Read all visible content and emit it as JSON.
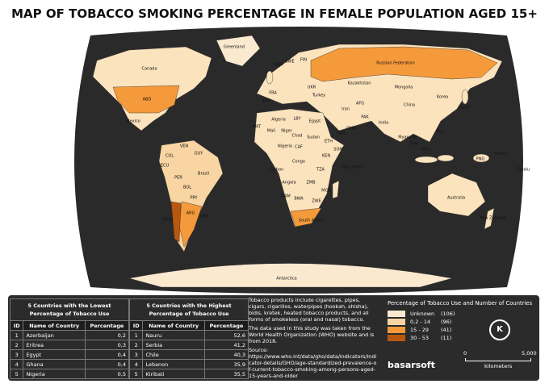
{
  "header": {
    "title": "MAP OF TOBACCO SMOKING PERCENTAGE IN FEMALE POPULATION AGED 15+"
  },
  "map": {
    "labels": [
      "Greenland",
      "Canada",
      "ABD",
      "Mexico",
      "COL",
      "VEN",
      "GUY",
      "ECU",
      "PER",
      "Brazil",
      "BOL",
      "PRY",
      "ARG",
      "Chile",
      "URY",
      "Russian Federation",
      "Kazakhstan",
      "Mongolia",
      "China",
      "India",
      "Iran",
      "AFG",
      "PAK",
      "Turkey",
      "FIN",
      "SWE",
      "NOR",
      "FRA",
      "ESP",
      "UKR",
      "Algeria",
      "LBY",
      "Egypt",
      "Sudan",
      "Chad",
      "Niger",
      "Mali",
      "MRT",
      "Nigeria",
      "CAF",
      "Gabon",
      "Congo",
      "Angola",
      "ZMB",
      "NAM",
      "BWA",
      "ZWE",
      "South Africa",
      "MOZ",
      "TZA",
      "KEN",
      "SOM",
      "ETH",
      "YEM",
      "OMN",
      "Seychelles",
      "Korea",
      "Japan",
      "Myanmar",
      "THA",
      "PHL",
      "MYS",
      "PNG",
      "Australia",
      "New Zealand",
      "Nauru",
      "Tuvalu",
      "Antarctica"
    ]
  },
  "lowest_table": {
    "title": "5 Countries with the Lowest Percentage of Tobacco Use",
    "columns": [
      "ID",
      "Name of Country",
      "Percentage"
    ],
    "rows": [
      [
        1,
        "Azerbaijan",
        "0,2"
      ],
      [
        2,
        "Eritrea",
        "0,3"
      ],
      [
        3,
        "Egypt",
        "0,4"
      ],
      [
        4,
        "Ghana",
        "0,4"
      ],
      [
        5,
        "Nigeria",
        "0,5"
      ]
    ]
  },
  "highest_table": {
    "title": "5 Countries with the Highest Percentage of Tobacco Use",
    "columns": [
      "ID",
      "Name of Country",
      "Percentage"
    ],
    "rows": [
      [
        1,
        "Nauru",
        "52,6"
      ],
      [
        2,
        "Serbia",
        "41,2"
      ],
      [
        3,
        "Chile",
        "40,3"
      ],
      [
        4,
        "Lebanon",
        "35,9"
      ],
      [
        5,
        "Kiribati",
        "35,5"
      ]
    ]
  },
  "notes": {
    "products": "Tobacco products include cigarettes, pipes, cigars, cigarillos, waterpipes (hookah, shisha), bidis, kretek, heated tobacco products, and all forms of smokeless (oral and nasal) tobacco.",
    "data_source": "The data used in this study was taken from the World Health Organization (WHO) website and is from 2018.",
    "source_label": "Source:",
    "source_url": "https://www.who.int/data/gho/data/indicators/indicator-details/GHO/age-standardized-prevalence-of-current-tobacco-smoking-among-persons-aged-15-years-and-older"
  },
  "legend": {
    "title": "Percentage of Tobacco Use and Number of Countries",
    "items": [
      {
        "label": "Unknown",
        "count": "(106)",
        "color": "#fbe9cf"
      },
      {
        "label": "0,2 - 14",
        "count": "(96)",
        "color": "#f8d5a2"
      },
      {
        "label": "15 - 29",
        "count": "(41)",
        "color": "#f59a3a"
      },
      {
        "label": "30 - 53",
        "count": "(11)",
        "color": "#b9570e"
      }
    ]
  },
  "compass": "K",
  "scale": {
    "start": "0",
    "end": "5,000",
    "unit": "kilometers"
  },
  "logo": "basarsoft"
}
